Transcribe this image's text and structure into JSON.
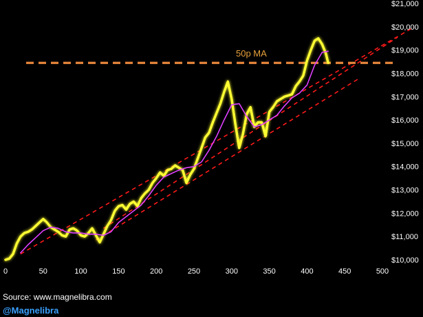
{
  "chart_data": {
    "type": "line",
    "xlim": [
      0,
      500
    ],
    "ylim": [
      10000,
      21000
    ],
    "x_ticks": [
      "0",
      "50",
      "100",
      "150",
      "200",
      "250",
      "300",
      "350",
      "400",
      "450",
      "500"
    ],
    "y_ticks": [
      "$10,000",
      "$11,000",
      "$12,000",
      "$13,000",
      "$14,000",
      "$15,000",
      "$16,000",
      "$17,000",
      "$18,000",
      "$19,000",
      "$20,000",
      "$21,000"
    ],
    "grid": false,
    "series": [
      {
        "color": "#ffff33",
        "style": "solid",
        "x": [
          0,
          5,
          10,
          15,
          20,
          25,
          30,
          35,
          40,
          45,
          50,
          55,
          60,
          65,
          70,
          75,
          80,
          85,
          90,
          95,
          100,
          105,
          110,
          115,
          120,
          125,
          130,
          135,
          140,
          145,
          150,
          155,
          160,
          165,
          170,
          175,
          180,
          185,
          190,
          195,
          200,
          205,
          210,
          215,
          220,
          225,
          230,
          235,
          240,
          245,
          250,
          255,
          260,
          265,
          270,
          275,
          280,
          285,
          290,
          295,
          300,
          305,
          310,
          315,
          320,
          325,
          330,
          335,
          340,
          345,
          350,
          355,
          360,
          365,
          370,
          375,
          380,
          385,
          390,
          395,
          400,
          405,
          410,
          415,
          420,
          425,
          428
        ],
        "values": [
          10000,
          10050,
          10250,
          10700,
          11000,
          11150,
          11200,
          11300,
          11450,
          11600,
          11750,
          11600,
          11400,
          11300,
          11200,
          11050,
          11000,
          11300,
          11350,
          11250,
          11050,
          11000,
          11150,
          11350,
          11050,
          10750,
          11100,
          11450,
          11700,
          12100,
          12300,
          12350,
          12150,
          12400,
          12500,
          12300,
          12650,
          12850,
          13000,
          13300,
          13500,
          13750,
          13600,
          13850,
          13900,
          14050,
          13950,
          13850,
          13300,
          13650,
          13900,
          14350,
          14800,
          15250,
          15450,
          15900,
          16300,
          16700,
          17200,
          17650,
          16900,
          15800,
          14800,
          15400,
          16250,
          16550,
          15700,
          15900,
          15900,
          15300,
          16350,
          16550,
          16800,
          16900,
          17000,
          17050,
          17100,
          17450,
          17650,
          17900,
          18550,
          19000,
          19400,
          19500,
          19250,
          18850,
          18450
        ]
      },
      {
        "color": "#e040ff",
        "style": "solid",
        "x": [
          20,
          30,
          40,
          50,
          60,
          70,
          80,
          90,
          100,
          110,
          120,
          130,
          140,
          150,
          160,
          170,
          180,
          190,
          200,
          210,
          220,
          230,
          240,
          250,
          260,
          270,
          280,
          290,
          300,
          310,
          320,
          330,
          340,
          350,
          360,
          370,
          380,
          390,
          400,
          410,
          420,
          428
        ],
        "values": [
          10300,
          10650,
          10950,
          11250,
          11400,
          11350,
          11200,
          11150,
          11150,
          11100,
          11100,
          11050,
          11200,
          11600,
          11850,
          12100,
          12350,
          12750,
          13200,
          13550,
          13700,
          13850,
          13950,
          14000,
          14200,
          14700,
          15300,
          16000,
          16650,
          16700,
          16150,
          15700,
          15800,
          16000,
          16200,
          16600,
          16950,
          17150,
          17500,
          18350,
          18900,
          18950
        ]
      }
    ],
    "annotations": [
      {
        "type": "hline",
        "y": 18450,
        "color": "#e8863c",
        "style": "dashed",
        "label": "50p MA"
      }
    ],
    "trend_channel": [
      {
        "color": "#ff1a1a",
        "style": "dashed",
        "x": [
          20,
          540
        ],
        "values": [
          10250,
          19950
        ]
      },
      {
        "color": "#ff1a1a",
        "style": "dashed",
        "x": [
          130,
          520
        ],
        "values": [
          11350,
          19550
        ]
      },
      {
        "color": "#ff1a1a",
        "style": "dashed",
        "x": [
          120,
          470
        ],
        "values": [
          10850,
          17800
        ]
      }
    ]
  },
  "footer": {
    "source": "Source: www.magnelibra.com",
    "handle": "@Magnelibra"
  }
}
